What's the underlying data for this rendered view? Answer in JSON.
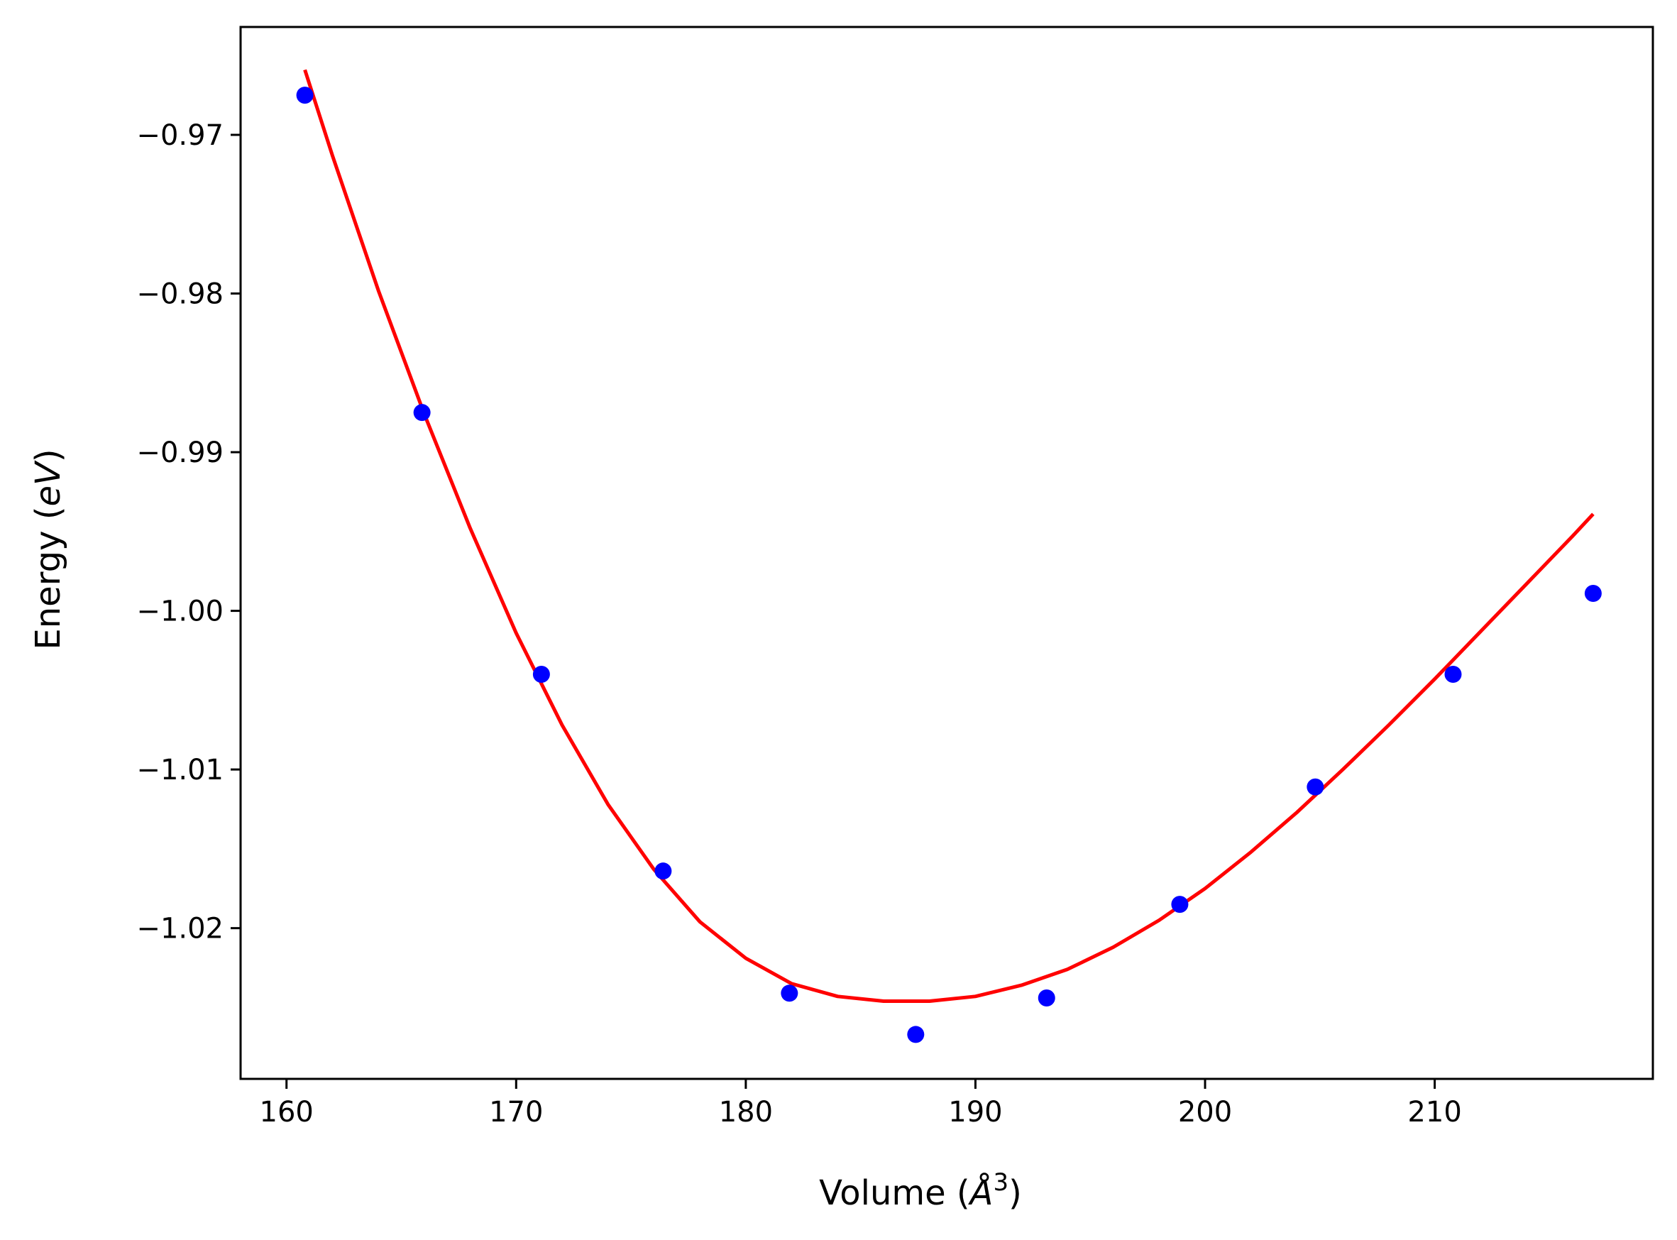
{
  "chart_data": {
    "type": "scatter",
    "title": "",
    "xlabel": {
      "prefix": "Volume (",
      "symbol": "Å",
      "power": "3",
      "suffix": ")"
    },
    "ylabel": {
      "prefix": "Energy (",
      "unit": "eV",
      "suffix": ")"
    },
    "xlim": [
      158.0,
      219.5
    ],
    "ylim": [
      -1.0295,
      -0.9632
    ],
    "xticks": [
      160,
      170,
      180,
      190,
      200,
      210
    ],
    "xtick_labels": [
      "160",
      "170",
      "180",
      "190",
      "200",
      "210"
    ],
    "yticks": [
      -0.97,
      -0.98,
      -0.99,
      -1.0,
      -1.01,
      -1.02
    ],
    "ytick_labels": [
      "−0.97",
      "−0.98",
      "−0.99",
      "−1.00",
      "−1.01",
      "−1.02"
    ],
    "grid": false,
    "legend": "none",
    "series": [
      {
        "kind": "points",
        "color": "#0000ff",
        "x": [
          160.8,
          165.9,
          171.1,
          176.4,
          181.9,
          187.4,
          193.1,
          198.9,
          204.8,
          210.8,
          216.9
        ],
        "y": [
          -0.9675,
          -0.9875,
          -1.004,
          -1.0164,
          -1.0241,
          -1.0267,
          -1.0244,
          -1.0185,
          -1.0111,
          -1.004,
          -0.9989
        ]
      },
      {
        "kind": "fit",
        "color": "#ff0000",
        "x": [
          160.8,
          162,
          164,
          166,
          168,
          170,
          172,
          174,
          176,
          178,
          180,
          182,
          184,
          186,
          188,
          190,
          192,
          194,
          196,
          198,
          200,
          202,
          204,
          206,
          208,
          210,
          212,
          214,
          216,
          216.9
        ],
        "y": [
          -0.9659,
          -0.9713,
          -0.9798,
          -0.9876,
          -0.9948,
          -1.0014,
          -1.0072,
          -1.0122,
          -1.0163,
          -1.0196,
          -1.0219,
          -1.0235,
          -1.0243,
          -1.0246,
          -1.0246,
          -1.0243,
          -1.0236,
          -1.0226,
          -1.0212,
          -1.0195,
          -1.0175,
          -1.0152,
          -1.0127,
          -1.01,
          -1.0072,
          -1.0043,
          -1.0013,
          -0.9983,
          -0.9953,
          -0.9939
        ]
      }
    ]
  }
}
